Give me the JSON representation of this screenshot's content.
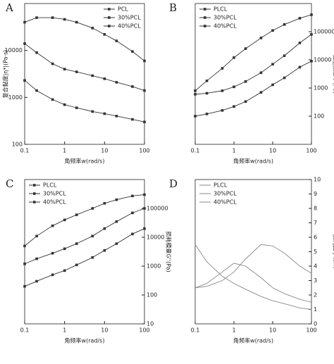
{
  "chart_data": [
    {
      "type": "line",
      "panel": "A",
      "xscale": "log",
      "yscale": "log",
      "ylabel_side": "left",
      "markers": true,
      "legend": "upper right",
      "xlabel": "角频率w(rad/s)",
      "ylabel": "复合黏度|η*|(Pa·s)",
      "xlim": [
        0.1,
        100
      ],
      "xticks": [
        0.1,
        1,
        10,
        100
      ],
      "ylim": [
        100,
        100000
      ],
      "yticks": [
        100,
        1000,
        10000
      ],
      "x": [
        0.1,
        0.2,
        0.5,
        1,
        2,
        5,
        10,
        20,
        50,
        100
      ],
      "series": [
        {
          "name": "PCL",
          "color": "#333333",
          "values": [
            40000,
            50000,
            50000,
            46000,
            40000,
            30000,
            22000,
            16000,
            9500,
            6000
          ]
        },
        {
          "name": "30%PCL",
          "color": "#333333",
          "values": [
            14000,
            9000,
            5200,
            4000,
            3500,
            2900,
            2500,
            2100,
            1700,
            1400
          ]
        },
        {
          "name": "40%PCL",
          "color": "#333333",
          "values": [
            2300,
            1400,
            900,
            700,
            600,
            500,
            450,
            400,
            340,
            300
          ]
        }
      ]
    },
    {
      "type": "line",
      "panel": "B",
      "xscale": "log",
      "yscale": "log",
      "ylabel_side": "right",
      "markers": true,
      "legend": "upper left",
      "xlabel": "角频率w(rad/s)",
      "ylabel": "储能模量G'(Pa)",
      "xlim": [
        0.1,
        100
      ],
      "xticks": [
        0.1,
        1,
        10,
        100
      ],
      "ylim": [
        10,
        1000000
      ],
      "yticks": [
        100,
        1000,
        10000,
        100000
      ],
      "x": [
        0.1,
        0.2,
        0.5,
        1,
        2,
        5,
        10,
        20,
        50,
        100
      ],
      "series": [
        {
          "name": "PLCL",
          "color": "#333333",
          "values": [
            800,
            1800,
            5000,
            12000,
            25000,
            60000,
            110000,
            180000,
            300000,
            400000
          ]
        },
        {
          "name": "30%PCL",
          "color": "#333333",
          "values": [
            600,
            650,
            800,
            1100,
            1700,
            3500,
            7000,
            14000,
            40000,
            80000
          ]
        },
        {
          "name": "40%PCL",
          "color": "#333333",
          "values": [
            100,
            120,
            160,
            220,
            330,
            700,
            1300,
            2300,
            5500,
            9000
          ]
        }
      ]
    },
    {
      "type": "line",
      "panel": "C",
      "xscale": "log",
      "yscale": "log",
      "ylabel_side": "right",
      "markers": true,
      "legend": "upper left",
      "xlabel": "角频率w(rad/s)",
      "ylabel": "损耗模量G''(Pa)",
      "xlim": [
        0.1,
        100
      ],
      "xticks": [
        0.1,
        1,
        10,
        100
      ],
      "ylim": [
        10,
        1000000
      ],
      "yticks": [
        10,
        100,
        1000,
        10000,
        100000
      ],
      "x": [
        0.1,
        0.2,
        0.5,
        1,
        2,
        5,
        10,
        20,
        50,
        100
      ],
      "series": [
        {
          "name": "PLCL",
          "color": "#333333",
          "values": [
            5000,
            11000,
            25000,
            40000,
            60000,
            100000,
            150000,
            200000,
            270000,
            300000
          ]
        },
        {
          "name": "30%PCL",
          "color": "#333333",
          "values": [
            1200,
            1800,
            2800,
            4000,
            6000,
            11000,
            20000,
            35000,
            70000,
            100000
          ]
        },
        {
          "name": "40%PCL",
          "color": "#333333",
          "values": [
            200,
            300,
            500,
            700,
            1100,
            2000,
            3500,
            6000,
            13000,
            20000
          ]
        }
      ]
    },
    {
      "type": "line",
      "panel": "D",
      "xscale": "log",
      "yscale": "linear",
      "ylabel_side": "right",
      "markers": false,
      "legend": "upper left",
      "xlabel": "角频率w(rad/s)",
      "ylabel": "损耗因子tanδ",
      "xlim": [
        0.1,
        100
      ],
      "xticks": [
        0.1,
        1,
        10,
        100
      ],
      "ylim": [
        0,
        10
      ],
      "yticks": [
        0,
        1,
        2,
        3,
        4,
        5,
        6,
        7,
        8,
        9,
        10
      ],
      "x": [
        0.1,
        0.2,
        0.5,
        1,
        2,
        5,
        10,
        20,
        50,
        100
      ],
      "series": [
        {
          "name": "PLCL",
          "color": "#888888",
          "values": [
            5.5,
            4.3,
            3.3,
            2.8,
            2.4,
            1.9,
            1.6,
            1.4,
            1.1,
            1.0
          ]
        },
        {
          "name": "30%PCL",
          "color": "#888888",
          "values": [
            2.5,
            2.8,
            3.6,
            4.2,
            4.0,
            3.2,
            2.5,
            2.1,
            1.7,
            1.5
          ]
        },
        {
          "name": "40%PCL",
          "color": "#888888",
          "values": [
            2.5,
            2.6,
            3.0,
            3.6,
            4.5,
            5.5,
            5.4,
            4.9,
            4.0,
            3.5
          ]
        }
      ]
    }
  ]
}
